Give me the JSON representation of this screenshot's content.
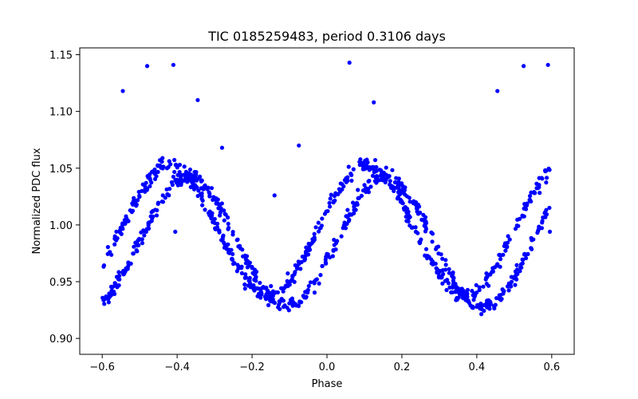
{
  "chart_data": {
    "type": "scatter",
    "title": "TIC 0185259483, period 0.3106 days",
    "xlabel": "Phase",
    "ylabel": "Normalized PDC flux",
    "xlim": [
      -0.66,
      0.66
    ],
    "ylim": [
      0.886,
      1.156
    ],
    "xticks": [
      -0.6,
      -0.4,
      -0.2,
      0.0,
      0.2,
      0.4,
      0.6
    ],
    "xtick_labels": [
      "−0.6",
      "−0.4",
      "−0.2",
      "0.0",
      "0.2",
      "0.4",
      "0.6"
    ],
    "yticks": [
      0.9,
      0.95,
      1.0,
      1.05,
      1.1,
      1.15
    ],
    "ytick_labels": [
      "0.90",
      "0.95",
      "1.00",
      "1.05",
      "1.10",
      "1.15"
    ],
    "grid": false,
    "marker_color": "#0000ff",
    "period_days": 0.3106,
    "model": {
      "description": "two-track sinusoidal phase-folded light curve",
      "mean_flux": 0.99,
      "amplitude": 0.057,
      "minima_phases": [
        -0.15,
        0.36
      ],
      "maxima_phases": [
        -0.4,
        0.13,
        0.59
      ],
      "track_offsets": [
        -0.005,
        0.005
      ]
    },
    "outliers": [
      {
        "x": -0.545,
        "y": 1.118
      },
      {
        "x": -0.48,
        "y": 1.14
      },
      {
        "x": -0.41,
        "y": 1.141
      },
      {
        "x": -0.345,
        "y": 1.11
      },
      {
        "x": -0.28,
        "y": 1.068
      },
      {
        "x": -0.14,
        "y": 1.026
      },
      {
        "x": -0.075,
        "y": 1.07
      },
      {
        "x": 0.06,
        "y": 1.143
      },
      {
        "x": 0.125,
        "y": 1.108
      },
      {
        "x": 0.455,
        "y": 1.118
      },
      {
        "x": 0.525,
        "y": 1.14
      },
      {
        "x": 0.59,
        "y": 1.141
      },
      {
        "x": 0.595,
        "y": 0.994
      },
      {
        "x": -0.405,
        "y": 0.994
      }
    ]
  }
}
